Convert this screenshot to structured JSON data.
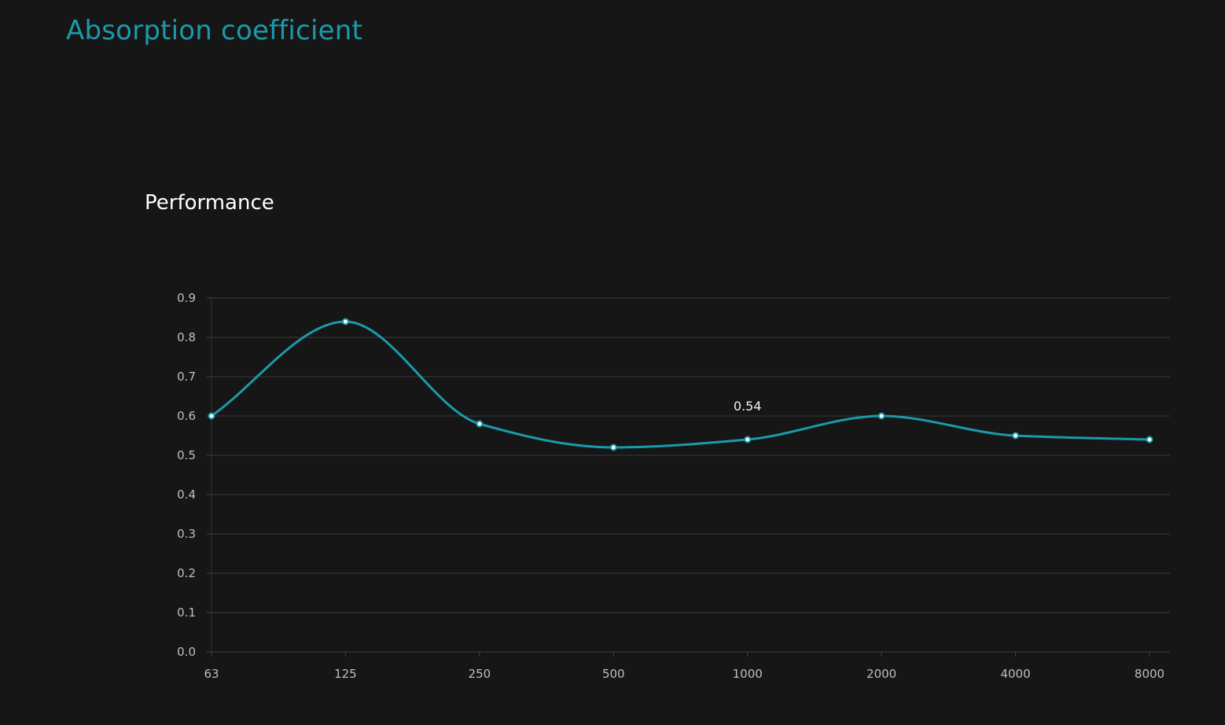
{
  "page": {
    "title": "Absorption coefficient"
  },
  "colors": {
    "background": "#161616",
    "accent": "#1b9aaa",
    "gridline": "#3a3a3a",
    "tick_text": "#bfbfbf",
    "title_text": "#ffffff"
  },
  "chart_data": {
    "type": "line",
    "title": "Performance",
    "xlabel": "",
    "ylabel": "",
    "categories": [
      "63",
      "125",
      "250",
      "500",
      "1000",
      "2000",
      "4000",
      "8000"
    ],
    "series": [
      {
        "values": [
          0.6,
          0.84,
          0.58,
          0.52,
          0.54,
          0.6,
          0.55,
          0.54
        ]
      }
    ],
    "ylim": [
      0,
      0.9
    ],
    "yticks": [
      "0.0",
      "0.1",
      "0.2",
      "0.3",
      "0.4",
      "0.5",
      "0.6",
      "0.7",
      "0.8",
      "0.9"
    ],
    "grid": true,
    "smooth": true,
    "annotations": [
      {
        "category": "1000",
        "text": "0.54"
      }
    ]
  }
}
